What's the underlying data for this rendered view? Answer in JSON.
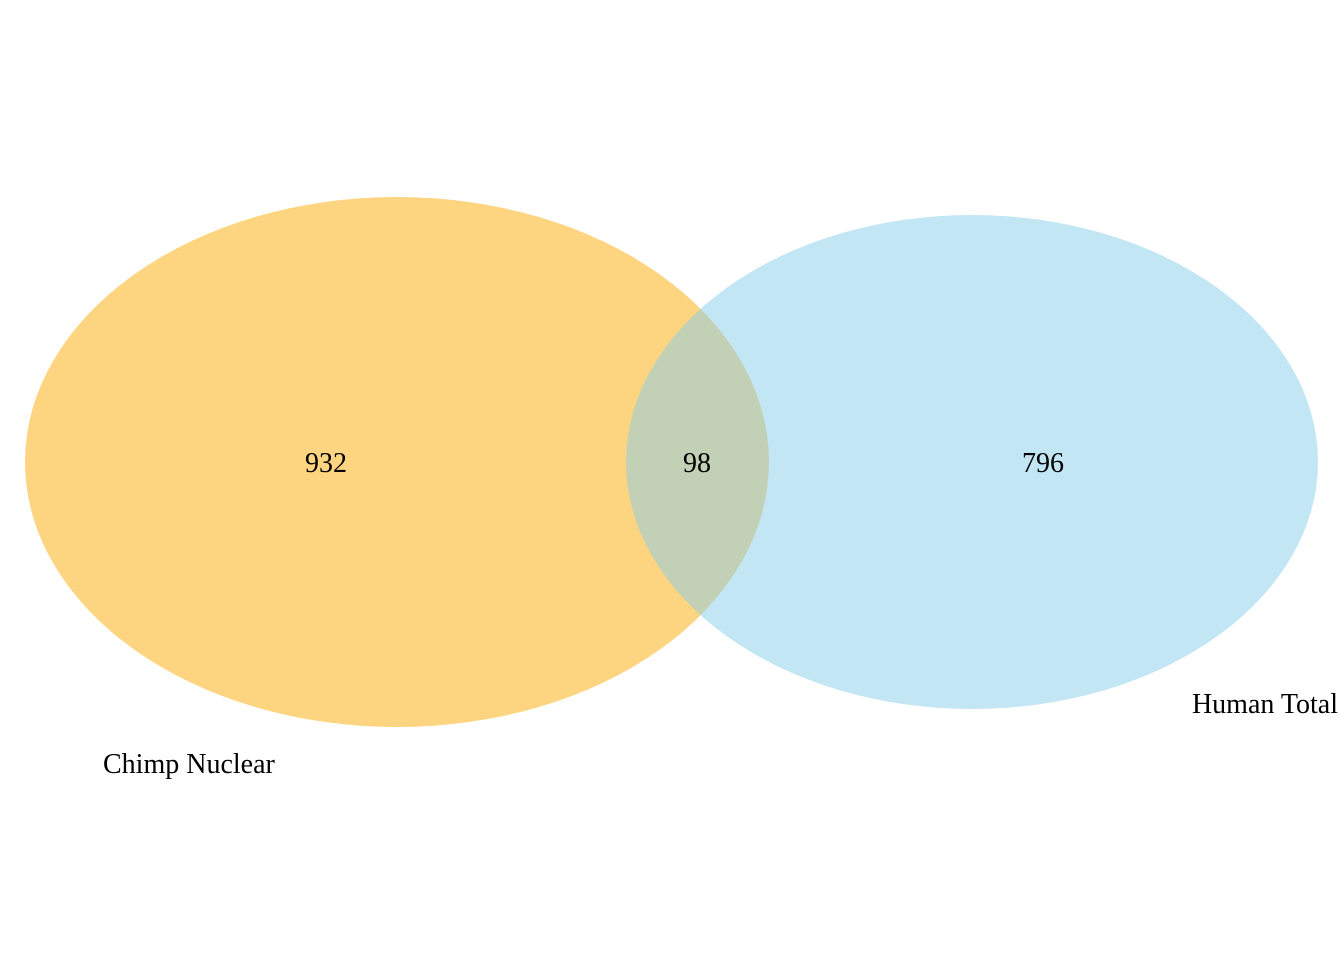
{
  "venn": {
    "sets": [
      {
        "label": "Chimp Nuclear",
        "color": "#fbb829",
        "only_count": "932"
      },
      {
        "label": "Human Total",
        "color": "#87ceeb",
        "only_count": "796"
      }
    ],
    "intersection_count": "98",
    "intersection_color": "#c2cfb7"
  }
}
